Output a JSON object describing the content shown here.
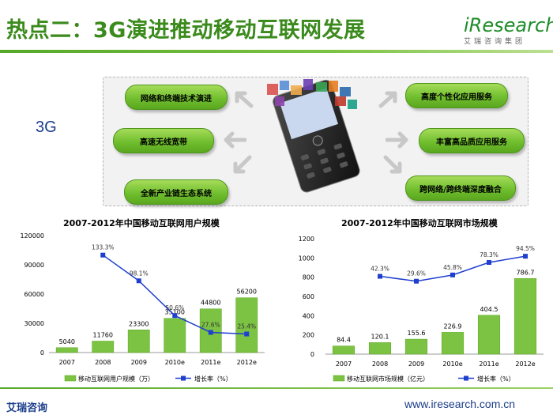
{
  "header": {
    "title": "热点二：3G演进推动移动互联网发展",
    "logo_word": "iResearch",
    "logo_sub": "艾瑞咨询集团"
  },
  "diagram": {
    "label_3g": "3G",
    "left_items": [
      "网络和终端技术演进",
      "高速无线宽带",
      "全新产业链生态系统"
    ],
    "right_items": [
      "高度个性化应用服务",
      "丰富高品质应用服务",
      "跨网络/跨终端深度融合"
    ]
  },
  "colors": {
    "bar": "#7cc243",
    "line": "#1f3fcf",
    "title": "#3a8a1c",
    "brand_blue": "#1a3d8a"
  },
  "chart_data": [
    {
      "type": "bar",
      "title": "2007-2012年中国移动互联网用户规模",
      "categories": [
        "2007",
        "2008",
        "2009",
        "2010e",
        "2011e",
        "2012e"
      ],
      "series": [
        {
          "name": "移动互联网用户规模（万）",
          "values": [
            5040,
            11760,
            23300,
            35100,
            44800,
            56200
          ]
        },
        {
          "name": "增长率（%）",
          "type": "line",
          "values": [
            null,
            133.3,
            98.1,
            50.6,
            27.6,
            25.4
          ]
        }
      ],
      "bar_labels": [
        "5040",
        "11760",
        "23300",
        "35100",
        "44800",
        "56200"
      ],
      "line_labels": [
        "",
        "133.3%",
        "98.1%",
        "50.6%",
        "27.6%",
        "25.4%"
      ],
      "ylim": [
        0,
        120000
      ],
      "yticks": [
        "0",
        "30000",
        "60000",
        "90000",
        "120000"
      ],
      "line_ylim": [
        0,
        160
      ],
      "legend": "bottom"
    },
    {
      "type": "bar",
      "title": "2007-2012年中国移动互联网市场规模",
      "categories": [
        "2007",
        "2008",
        "2009",
        "2010e",
        "2011e",
        "2012e"
      ],
      "series": [
        {
          "name": "移动互联网市场规模（亿元）",
          "values": [
            84.4,
            120.1,
            155.6,
            226.9,
            404.5,
            786.7
          ]
        },
        {
          "name": "增长率（%）",
          "type": "line",
          "values": [
            null,
            42.3,
            29.6,
            45.8,
            78.3,
            94.5
          ]
        }
      ],
      "bar_labels": [
        "84.4",
        "120.1",
        "155.6",
        "226.9",
        "404.5",
        "786.7"
      ],
      "line_labels": [
        "",
        "42.3%",
        "29.6%",
        "45.8%",
        "78.3%",
        "94.5%"
      ],
      "ylim": [
        0,
        1200
      ],
      "yticks": [
        "0",
        "200",
        "400",
        "600",
        "800",
        "1000",
        "1200"
      ],
      "line_ylim": [
        -160,
        140
      ],
      "legend": "bottom"
    }
  ],
  "footer": {
    "left": "艾瑞咨询",
    "right": "www.iresearch.com.cn"
  }
}
